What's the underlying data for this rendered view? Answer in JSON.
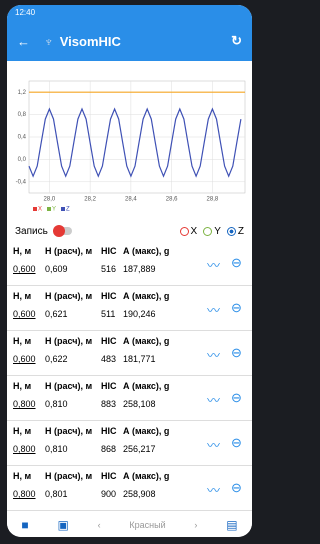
{
  "status_bar": {
    "time": "12:40"
  },
  "app_bar": {
    "title": "VisomHIC"
  },
  "chart_data": {
    "type": "line",
    "x": [
      27.9,
      27.92,
      27.94,
      27.96,
      27.98,
      28.0,
      28.02,
      28.04,
      28.06,
      28.08,
      28.1,
      28.12,
      28.14,
      28.16,
      28.18,
      28.2,
      28.22,
      28.24,
      28.26,
      28.28,
      28.3,
      28.32,
      28.34,
      28.36,
      28.38,
      28.4,
      28.42,
      28.44,
      28.46,
      28.48,
      28.5,
      28.52,
      28.54,
      28.56,
      28.58,
      28.6,
      28.62,
      28.64,
      28.66,
      28.68,
      28.7,
      28.72,
      28.74,
      28.76,
      28.78,
      28.8,
      28.82,
      28.84,
      28.86,
      28.88,
      28.9,
      28.92,
      28.94
    ],
    "series": [
      {
        "name": "Z",
        "color": "#3f51b5",
        "values": [
          -0.12,
          -0.3,
          -0.12,
          0.3,
          0.72,
          0.9,
          0.72,
          0.3,
          -0.12,
          -0.3,
          -0.12,
          0.3,
          0.72,
          0.9,
          0.72,
          0.3,
          -0.12,
          -0.3,
          -0.12,
          0.3,
          0.72,
          0.9,
          0.72,
          0.3,
          -0.12,
          -0.3,
          -0.12,
          0.3,
          0.72,
          0.9,
          0.72,
          0.3,
          -0.12,
          -0.3,
          -0.12,
          0.3,
          0.72,
          0.9,
          0.72,
          0.3,
          -0.12,
          -0.3,
          -0.12,
          0.3,
          0.72,
          0.9,
          0.72,
          0.3,
          -0.12,
          -0.3,
          -0.12,
          0.3,
          0.72
        ]
      }
    ],
    "hline": {
      "value": 1.2,
      "color": "#f5a623"
    },
    "xlim": [
      27.9,
      28.96
    ],
    "ylim": [
      -0.6,
      1.4
    ],
    "xticks": [
      {
        "value": 28.0,
        "label": "28,0"
      },
      {
        "value": 28.2,
        "label": "28,2"
      },
      {
        "value": 28.4,
        "label": "28,4"
      },
      {
        "value": 28.6,
        "label": "28,6"
      },
      {
        "value": 28.8,
        "label": "28,8"
      }
    ],
    "yticks": [
      {
        "value": 1.2,
        "label": "1,2"
      },
      {
        "value": 0.8,
        "label": "0,8"
      },
      {
        "value": 0.4,
        "label": "0,4"
      },
      {
        "value": 0,
        "label": "0,0"
      },
      {
        "value": -0.4,
        "label": "-0,4"
      }
    ],
    "grid": true,
    "legend": [
      {
        "label": "X",
        "color": "#e53935"
      },
      {
        "label": "Y",
        "color": "#7cb342"
      },
      {
        "label": "Z",
        "color": "#3f51b5"
      }
    ]
  },
  "controls": {
    "record": "Запись",
    "axes": [
      "X",
      "Y",
      "Z"
    ]
  },
  "headers": [
    "Н, м",
    "Н (расч), м",
    "HIC",
    "А (макс), g"
  ],
  "records": [
    [
      "0,600",
      "0,609",
      "516",
      "187,889"
    ],
    [
      "0,600",
      "0,621",
      "511",
      "190,246"
    ],
    [
      "0,600",
      "0,622",
      "483",
      "181,771"
    ],
    [
      "0,800",
      "0,810",
      "883",
      "258,108"
    ],
    [
      "0,800",
      "0,810",
      "868",
      "256,217"
    ],
    [
      "0,800",
      "0,801",
      "900",
      "258,908"
    ]
  ],
  "bottom_bar": {
    "color": "Красный"
  }
}
